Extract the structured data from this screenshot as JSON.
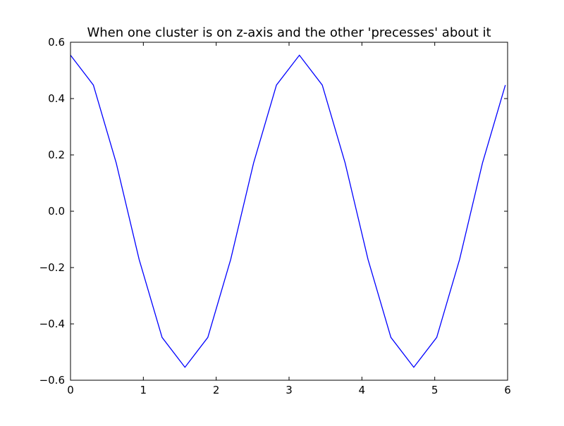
{
  "chart_data": {
    "type": "line",
    "title": "When one cluster is on z-axis and the other 'precesses' about it",
    "xlabel": "",
    "ylabel": "",
    "xlim": [
      0,
      6
    ],
    "ylim": [
      -0.6,
      0.6
    ],
    "x_ticks": [
      0,
      1,
      2,
      3,
      4,
      5,
      6
    ],
    "x_tick_labels": [
      "0",
      "1",
      "2",
      "3",
      "4",
      "5",
      "6"
    ],
    "y_ticks": [
      -0.6,
      -0.4,
      -0.2,
      0.0,
      0.2,
      0.4,
      0.6
    ],
    "y_tick_labels": [
      "−0.6",
      "−0.4",
      "−0.2",
      "0.0",
      "0.2",
      "0.4",
      "0.6"
    ],
    "grid": false,
    "series": [
      {
        "color": "#0000ff",
        "x": [
          0.0,
          0.314,
          0.628,
          0.942,
          1.257,
          1.571,
          1.885,
          2.199,
          2.513,
          2.827,
          3.142,
          3.456,
          3.77,
          4.084,
          4.398,
          4.712,
          5.027,
          5.341,
          5.655,
          5.969
        ],
        "y": [
          0.554,
          0.448,
          0.171,
          -0.171,
          -0.448,
          -0.554,
          -0.448,
          -0.171,
          0.171,
          0.448,
          0.554,
          0.448,
          0.171,
          -0.171,
          -0.448,
          -0.554,
          -0.448,
          -0.171,
          0.171,
          0.448
        ]
      }
    ]
  }
}
